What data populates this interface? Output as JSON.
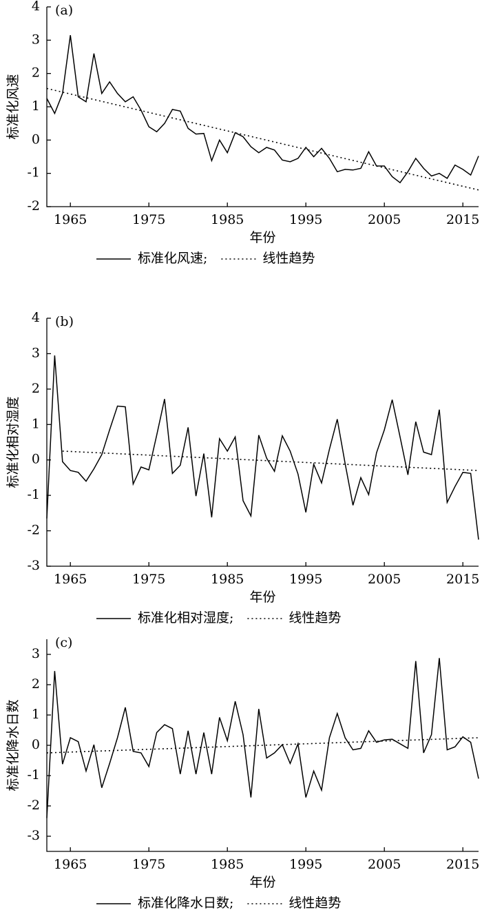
{
  "chart_data": [
    {
      "type": "line",
      "label": "(a)",
      "ylabel": "标准化风速",
      "xlabel": "年份",
      "xlim": [
        1962,
        2017
      ],
      "xticks": [
        1965,
        1975,
        1985,
        1995,
        2005,
        2015
      ],
      "ylim": [
        -2,
        4
      ],
      "yticks": [
        -2,
        -1,
        0,
        1,
        2,
        3,
        4
      ],
      "x": [
        1962,
        1963,
        1964,
        1965,
        1966,
        1967,
        1968,
        1969,
        1970,
        1971,
        1972,
        1973,
        1974,
        1975,
        1976,
        1977,
        1978,
        1979,
        1980,
        1981,
        1982,
        1983,
        1984,
        1985,
        1986,
        1987,
        1988,
        1989,
        1990,
        1991,
        1992,
        1993,
        1994,
        1995,
        1996,
        1997,
        1998,
        1999,
        2000,
        2001,
        2002,
        2003,
        2004,
        2005,
        2006,
        2007,
        2008,
        2009,
        2010,
        2011,
        2012,
        2013,
        2014,
        2015,
        2016,
        2017
      ],
      "series": [
        {
          "name": "标准化风速;",
          "color": "#000000",
          "style": "solid",
          "values": [
            1.25,
            0.8,
            1.4,
            3.15,
            1.3,
            1.15,
            2.6,
            1.4,
            1.75,
            1.4,
            1.15,
            1.3,
            0.9,
            0.4,
            0.25,
            0.5,
            0.92,
            0.87,
            0.35,
            0.18,
            0.2,
            -0.62,
            0.0,
            -0.38,
            0.22,
            0.1,
            -0.2,
            -0.38,
            -0.22,
            -0.3,
            -0.6,
            -0.65,
            -0.55,
            -0.22,
            -0.5,
            -0.25,
            -0.55,
            -0.95,
            -0.88,
            -0.9,
            -0.85,
            -0.35,
            -0.78,
            -0.78,
            -1.1,
            -1.28,
            -0.95,
            -0.55,
            -0.85,
            -1.08,
            -1.0,
            -1.15,
            -0.75,
            -0.88,
            -1.05,
            -0.48
          ]
        },
        {
          "name": "线性趋势",
          "color": "#000000",
          "style": "dotted",
          "x": [
            1962,
            2017
          ],
          "values": [
            1.55,
            -1.5
          ]
        }
      ]
    },
    {
      "type": "line",
      "label": "(b)",
      "ylabel": "标准化相对湿度",
      "xlabel": "年份",
      "xlim": [
        1962,
        2017
      ],
      "xticks": [
        1965,
        1975,
        1985,
        1995,
        2005,
        2015
      ],
      "ylim": [
        -3,
        4
      ],
      "yticks": [
        -3,
        -2,
        -1,
        0,
        1,
        2,
        3,
        4
      ],
      "x": [
        1962,
        1963,
        1964,
        1965,
        1966,
        1967,
        1968,
        1969,
        1970,
        1971,
        1972,
        1973,
        1974,
        1975,
        1976,
        1977,
        1978,
        1979,
        1980,
        1981,
        1982,
        1983,
        1984,
        1985,
        1986,
        1987,
        1988,
        1989,
        1990,
        1991,
        1992,
        1993,
        1994,
        1995,
        1996,
        1997,
        1998,
        1999,
        2000,
        2001,
        2002,
        2003,
        2004,
        2005,
        2006,
        2007,
        2008,
        2009,
        2010,
        2011,
        2012,
        2013,
        2014,
        2015,
        2016,
        2017
      ],
      "series": [
        {
          "name": "标准化相对湿度;",
          "color": "#000000",
          "style": "solid",
          "values": [
            -1.65,
            2.95,
            -0.05,
            -0.3,
            -0.35,
            -0.6,
            -0.25,
            0.15,
            0.85,
            1.52,
            1.5,
            -0.68,
            -0.2,
            -0.28,
            0.7,
            1.72,
            -0.38,
            -0.15,
            0.92,
            -1.02,
            0.18,
            -1.62,
            0.6,
            0.25,
            0.65,
            -1.15,
            -1.58,
            0.7,
            0.05,
            -0.32,
            0.68,
            0.25,
            -0.4,
            -1.48,
            -0.12,
            -0.65,
            0.3,
            1.15,
            -0.1,
            -1.28,
            -0.5,
            -0.98,
            0.2,
            0.85,
            1.7,
            0.65,
            -0.42,
            1.08,
            0.22,
            0.15,
            1.42,
            -1.2,
            -0.75,
            -0.35,
            -0.38,
            -2.25
          ]
        },
        {
          "name": "线性趋势",
          "color": "#000000",
          "style": "dotted",
          "x": [
            1964,
            2017
          ],
          "values": [
            0.25,
            -0.3
          ]
        }
      ]
    },
    {
      "type": "line",
      "label": "(c)",
      "ylabel": "标准化降水日数",
      "xlabel": "年份",
      "xlim": [
        1962,
        2017
      ],
      "xticks": [
        1965,
        1975,
        1985,
        1995,
        2005,
        2015
      ],
      "ylim": [
        -3.5,
        3.5
      ],
      "yticks": [
        -3,
        -2,
        -1,
        0,
        1,
        2,
        3
      ],
      "x": [
        1962,
        1963,
        1964,
        1965,
        1966,
        1967,
        1968,
        1969,
        1970,
        1971,
        1972,
        1973,
        1974,
        1975,
        1976,
        1977,
        1978,
        1979,
        1980,
        1981,
        1982,
        1983,
        1984,
        1985,
        1986,
        1987,
        1988,
        1989,
        1990,
        1991,
        1992,
        1993,
        1994,
        1995,
        1996,
        1997,
        1998,
        1999,
        2000,
        2001,
        2002,
        2003,
        2004,
        2005,
        2006,
        2007,
        2008,
        2009,
        2010,
        2011,
        2012,
        2013,
        2014,
        2015,
        2016,
        2017
      ],
      "series": [
        {
          "name": "标准化降水日数;",
          "color": "#000000",
          "style": "solid",
          "values": [
            -2.4,
            2.45,
            -0.62,
            0.25,
            0.12,
            -0.85,
            0.02,
            -1.4,
            -0.6,
            0.25,
            1.25,
            -0.2,
            -0.25,
            -0.7,
            0.42,
            0.68,
            0.55,
            -0.95,
            0.48,
            -0.95,
            0.42,
            -0.95,
            0.92,
            0.15,
            1.45,
            0.35,
            -1.72,
            1.2,
            -0.42,
            -0.25,
            0.02,
            -0.6,
            0.05,
            -1.72,
            -0.85,
            -1.48,
            0.25,
            1.05,
            0.25,
            -0.15,
            -0.1,
            0.48,
            0.1,
            0.18,
            0.2,
            0.05,
            -0.1,
            2.78,
            -0.25,
            0.35,
            2.88,
            -0.15,
            -0.05,
            0.28,
            0.1,
            -1.1
          ]
        },
        {
          "name": "线性趋势",
          "color": "#000000",
          "style": "dotted",
          "x": [
            1962,
            2017
          ],
          "values": [
            -0.25,
            0.25
          ]
        }
      ]
    }
  ]
}
